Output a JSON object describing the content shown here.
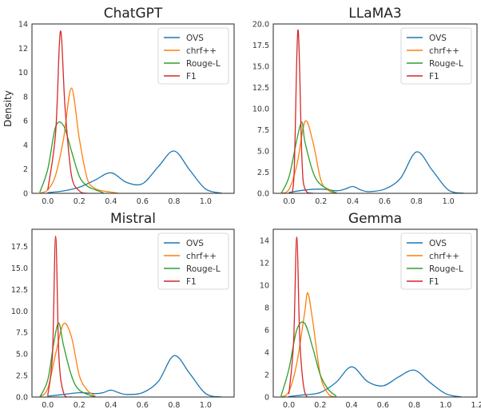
{
  "chart_data": [
    {
      "type": "line",
      "title": "ChatGPT",
      "xlabel": "",
      "ylabel": "Density",
      "xlim": [
        -0.1,
        1.18
      ],
      "ylim": [
        0,
        14
      ],
      "xticks": [
        0.0,
        0.2,
        0.4,
        0.6,
        0.8,
        1.0
      ],
      "xtick_labels": [
        "0.0",
        "0.2",
        "0.4",
        "0.6",
        "0.8",
        "1.0"
      ],
      "yticks": [
        0,
        2,
        4,
        6,
        8,
        10,
        12,
        14
      ],
      "ytick_labels": [
        "0",
        "2",
        "4",
        "6",
        "8",
        "10",
        "12",
        "14"
      ],
      "legend": "top-right",
      "series": [
        {
          "name": "OVS",
          "x": [
            0.0,
            0.1,
            0.2,
            0.3,
            0.4,
            0.5,
            0.6,
            0.7,
            0.8,
            0.9,
            1.0,
            1.1
          ],
          "y": [
            0.05,
            0.2,
            0.5,
            1.1,
            1.7,
            0.9,
            0.8,
            2.2,
            3.5,
            1.9,
            0.35,
            0.02
          ]
        },
        {
          "name": "chrf++",
          "x": [
            -0.05,
            0.0,
            0.05,
            0.1,
            0.15,
            0.2,
            0.25,
            0.3,
            0.35,
            0.4,
            0.45
          ],
          "y": [
            0.0,
            0.3,
            1.5,
            4.5,
            8.7,
            4.5,
            1.2,
            0.4,
            0.2,
            0.1,
            0.0
          ]
        },
        {
          "name": "Rouge-L",
          "x": [
            -0.05,
            0.0,
            0.05,
            0.1,
            0.15,
            0.2,
            0.25,
            0.3,
            0.35
          ],
          "y": [
            0.1,
            2.0,
            5.5,
            5.6,
            3.5,
            1.4,
            0.6,
            0.3,
            0.05
          ]
        },
        {
          "name": "F1",
          "x": [
            0.0,
            0.05,
            0.08,
            0.11,
            0.15,
            0.2,
            0.25
          ],
          "y": [
            0.3,
            5.0,
            13.4,
            7.0,
            1.5,
            0.2,
            0.0
          ]
        }
      ]
    },
    {
      "type": "line",
      "title": "LLaMA3",
      "xlabel": "",
      "ylabel": "",
      "xlim": [
        -0.1,
        1.18
      ],
      "ylim": [
        0,
        20
      ],
      "xticks": [
        0.0,
        0.2,
        0.4,
        0.6,
        0.8,
        1.0
      ],
      "xtick_labels": [
        "0.0",
        "0.2",
        "0.4",
        "0.6",
        "0.8",
        "1.0"
      ],
      "yticks": [
        0,
        2.5,
        5,
        7.5,
        10,
        12.5,
        15,
        17.5,
        20
      ],
      "ytick_labels": [
        "0.0",
        "2.5",
        "5.0",
        "7.5",
        "10.0",
        "12.5",
        "15.0",
        "17.5",
        "20.0"
      ],
      "legend": "top-right",
      "series": [
        {
          "name": "OVS",
          "x": [
            0.0,
            0.1,
            0.2,
            0.3,
            0.35,
            0.4,
            0.45,
            0.5,
            0.6,
            0.7,
            0.8,
            0.9,
            1.0,
            1.1
          ],
          "y": [
            0.1,
            0.4,
            0.5,
            0.3,
            0.5,
            0.8,
            0.4,
            0.2,
            0.5,
            1.8,
            4.9,
            2.7,
            0.4,
            0.0
          ]
        },
        {
          "name": "chrf++",
          "x": [
            -0.05,
            0.0,
            0.05,
            0.1,
            0.15,
            0.2,
            0.25,
            0.3
          ],
          "y": [
            0.0,
            0.5,
            3.5,
            8.5,
            6.0,
            1.5,
            0.3,
            0.0
          ]
        },
        {
          "name": "Rouge-L",
          "x": [
            -0.05,
            0.0,
            0.05,
            0.08,
            0.1,
            0.15,
            0.2,
            0.3
          ],
          "y": [
            0.0,
            2.0,
            6.5,
            8.4,
            6.0,
            2.5,
            1.0,
            0.0
          ]
        },
        {
          "name": "F1",
          "x": [
            0.0,
            0.03,
            0.055,
            0.08,
            0.1,
            0.15
          ],
          "y": [
            0.0,
            2.0,
            19.3,
            4.0,
            0.5,
            0.0
          ]
        }
      ]
    },
    {
      "type": "line",
      "title": "Mistral",
      "xlabel": "",
      "ylabel": "",
      "xlim": [
        -0.1,
        1.18
      ],
      "ylim": [
        0,
        19.5
      ],
      "xticks": [
        0.0,
        0.2,
        0.4,
        0.6,
        0.8,
        1.0
      ],
      "xtick_labels": [
        "0.0",
        "0.2",
        "0.4",
        "0.6",
        "0.8",
        "1.0"
      ],
      "yticks": [
        0,
        2.5,
        5,
        7.5,
        10,
        12.5,
        15,
        17.5
      ],
      "ytick_labels": [
        "0.0",
        "2.5",
        "5.0",
        "7.5",
        "10.0",
        "12.5",
        "15.0",
        "17.5"
      ],
      "legend": "top-right",
      "series": [
        {
          "name": "OVS",
          "x": [
            0.0,
            0.1,
            0.2,
            0.3,
            0.35,
            0.4,
            0.45,
            0.5,
            0.6,
            0.7,
            0.8,
            0.9,
            1.0,
            1.1
          ],
          "y": [
            0.1,
            0.3,
            0.5,
            0.4,
            0.5,
            0.8,
            0.5,
            0.3,
            0.5,
            1.8,
            4.8,
            2.7,
            0.4,
            0.0
          ]
        },
        {
          "name": "chrf++",
          "x": [
            -0.05,
            0.0,
            0.05,
            0.1,
            0.15,
            0.2,
            0.25,
            0.3
          ],
          "y": [
            0.0,
            1.0,
            5.0,
            8.5,
            7.0,
            2.5,
            0.8,
            0.1
          ]
        },
        {
          "name": "Rouge-L",
          "x": [
            -0.05,
            0.0,
            0.04,
            0.07,
            0.1,
            0.15,
            0.2,
            0.3
          ],
          "y": [
            0.0,
            2.0,
            6.5,
            8.6,
            6.0,
            2.5,
            0.8,
            0.0
          ]
        },
        {
          "name": "F1",
          "x": [
            0.0,
            0.03,
            0.05,
            0.07,
            0.1,
            0.15
          ],
          "y": [
            0.2,
            5.0,
            18.7,
            5.0,
            0.5,
            0.0
          ]
        }
      ]
    },
    {
      "type": "line",
      "title": "Gemma",
      "xlabel": "",
      "ylabel": "",
      "xlim": [
        -0.1,
        1.2
      ],
      "ylim": [
        0,
        15
      ],
      "xticks": [
        0.0,
        0.2,
        0.4,
        0.6,
        0.8,
        1.0,
        1.2
      ],
      "xtick_labels": [
        "0.0",
        "0.2",
        "0.4",
        "0.6",
        "0.8",
        "1.0",
        "1.2"
      ],
      "yticks": [
        0,
        2,
        4,
        6,
        8,
        10,
        12,
        14
      ],
      "ytick_labels": [
        "0",
        "2",
        "4",
        "6",
        "8",
        "10",
        "12",
        "14"
      ],
      "legend": "top-right",
      "series": [
        {
          "name": "OVS",
          "x": [
            0.0,
            0.1,
            0.2,
            0.3,
            0.4,
            0.5,
            0.6,
            0.7,
            0.8,
            0.9,
            1.0,
            1.1
          ],
          "y": [
            0.05,
            0.2,
            0.4,
            1.3,
            2.7,
            1.4,
            1.0,
            1.8,
            2.4,
            1.3,
            0.3,
            0.0
          ]
        },
        {
          "name": "chrf++",
          "x": [
            -0.05,
            0.0,
            0.05,
            0.1,
            0.12,
            0.15,
            0.2,
            0.25,
            0.3
          ],
          "y": [
            0.0,
            0.5,
            3.0,
            7.5,
            9.3,
            7.0,
            2.0,
            0.3,
            0.0
          ]
        },
        {
          "name": "Rouge-L",
          "x": [
            -0.05,
            0.0,
            0.05,
            0.1,
            0.15,
            0.2,
            0.25,
            0.3
          ],
          "y": [
            0.1,
            2.5,
            6.0,
            6.6,
            4.5,
            2.0,
            0.7,
            0.1
          ]
        },
        {
          "name": "F1",
          "x": [
            0.0,
            0.03,
            0.05,
            0.07,
            0.1,
            0.15
          ],
          "y": [
            0.3,
            5.0,
            14.3,
            5.0,
            0.5,
            0.0
          ]
        }
      ]
    }
  ],
  "colors": {
    "OVS": "#1f77b4",
    "chrf++": "#ff7f0e",
    "Rouge-L": "#2ca02c",
    "F1": "#d62728",
    "axes": "#262626"
  }
}
